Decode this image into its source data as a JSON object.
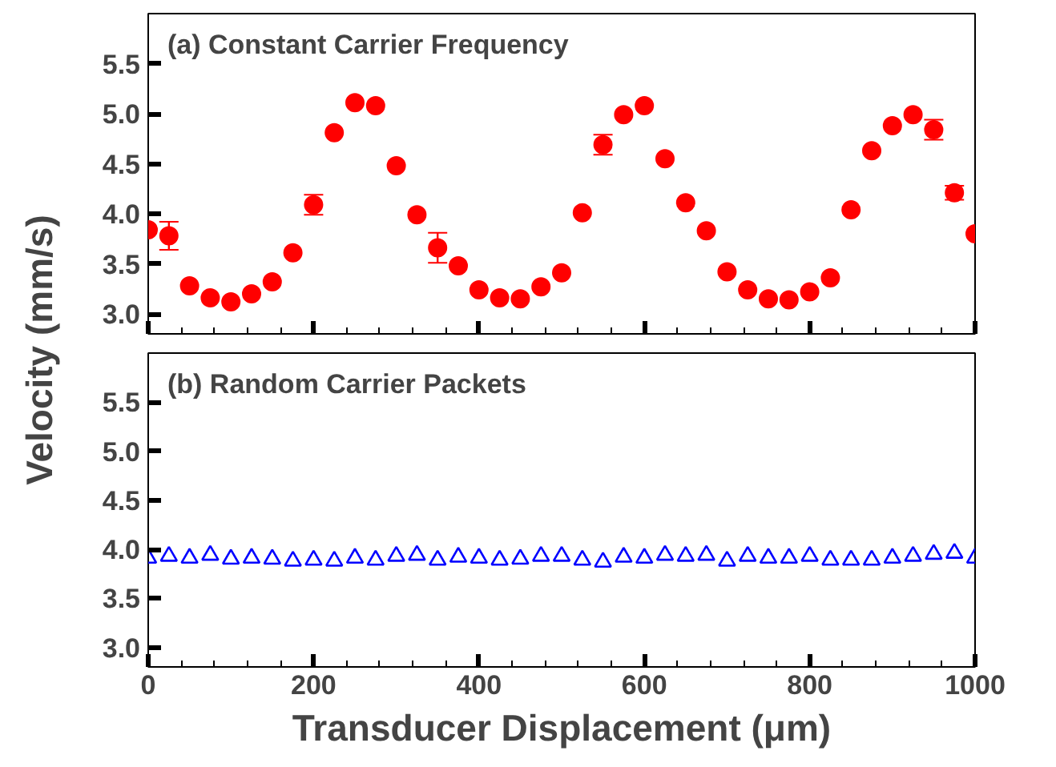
{
  "chart_data": [
    {
      "type": "scatter",
      "title": "(a) Constant Carrier Frequency",
      "ylabel": "Velocity (mm/s)",
      "tick_labels": "y",
      "marker": "circle",
      "x": [
        0,
        25,
        50,
        75,
        100,
        125,
        150,
        175,
        200,
        225,
        250,
        275,
        300,
        325,
        350,
        375,
        400,
        425,
        450,
        475,
        500,
        525,
        550,
        575,
        600,
        625,
        650,
        675,
        700,
        725,
        750,
        775,
        800,
        825,
        850,
        875,
        900,
        925,
        950,
        975,
        1000
      ],
      "xlim": [
        0,
        1000
      ],
      "xticks": [
        0,
        200,
        400,
        600,
        800,
        1000
      ],
      "ylim": [
        2.8,
        6.0
      ],
      "yticks": [
        {
          "value": 3,
          "label": "3.0"
        },
        3.5,
        {
          "value": 4,
          "label": "4.0"
        },
        4.5,
        {
          "value": 5,
          "label": "5.0"
        },
        5.5
      ],
      "series": [
        {
          "color": "#ff0000",
          "values": [
            3.84,
            3.78,
            3.28,
            3.16,
            3.12,
            3.2,
            3.32,
            3.61,
            4.09,
            4.81,
            5.11,
            5.08,
            4.48,
            3.99,
            3.66,
            3.48,
            3.24,
            3.16,
            3.15,
            3.27,
            3.41,
            4.01,
            4.69,
            4.99,
            5.08,
            4.55,
            4.11,
            3.83,
            3.42,
            3.24,
            3.15,
            3.14,
            3.22,
            3.36,
            4.04,
            4.63,
            4.88,
            4.99,
            4.84,
            4.21,
            3.8
          ],
          "errors": [
            null,
            0.14,
            null,
            null,
            null,
            null,
            null,
            null,
            0.1,
            null,
            null,
            null,
            null,
            null,
            0.15,
            null,
            null,
            null,
            null,
            null,
            null,
            null,
            0.1,
            null,
            null,
            null,
            null,
            null,
            null,
            null,
            null,
            null,
            null,
            null,
            null,
            null,
            null,
            null,
            0.1,
            0.07,
            null
          ]
        }
      ]
    },
    {
      "type": "scatter",
      "title": "(b) Random Carrier Packets",
      "xlabel": "Transducer Displacement (μm)",
      "marker": "triangle",
      "x": [
        0,
        25,
        50,
        75,
        100,
        125,
        150,
        175,
        200,
        225,
        250,
        275,
        300,
        325,
        350,
        375,
        400,
        425,
        450,
        475,
        500,
        525,
        550,
        575,
        600,
        625,
        650,
        675,
        700,
        725,
        750,
        775,
        800,
        825,
        850,
        875,
        900,
        925,
        950,
        975,
        1000
      ],
      "xlim": [
        0,
        1000
      ],
      "xticks": [
        0,
        200,
        400,
        600,
        800,
        1000
      ],
      "ylim": [
        2.8,
        6.0
      ],
      "yticks": [
        {
          "value": 3,
          "label": "3.0"
        },
        3.5,
        {
          "value": 4,
          "label": "4.0"
        },
        4.5,
        {
          "value": 5,
          "label": "5.0"
        },
        5.5
      ],
      "series": [
        {
          "color": "#0000ff",
          "values": [
            3.91,
            3.93,
            3.91,
            3.94,
            3.9,
            3.91,
            3.9,
            3.88,
            3.89,
            3.88,
            3.91,
            3.89,
            3.93,
            3.94,
            3.89,
            3.92,
            3.91,
            3.89,
            3.9,
            3.93,
            3.93,
            3.89,
            3.87,
            3.92,
            3.91,
            3.94,
            3.93,
            3.94,
            3.88,
            3.93,
            3.91,
            3.91,
            3.93,
            3.89,
            3.89,
            3.89,
            3.91,
            3.93,
            3.95,
            3.96,
            3.91
          ]
        }
      ]
    }
  ]
}
